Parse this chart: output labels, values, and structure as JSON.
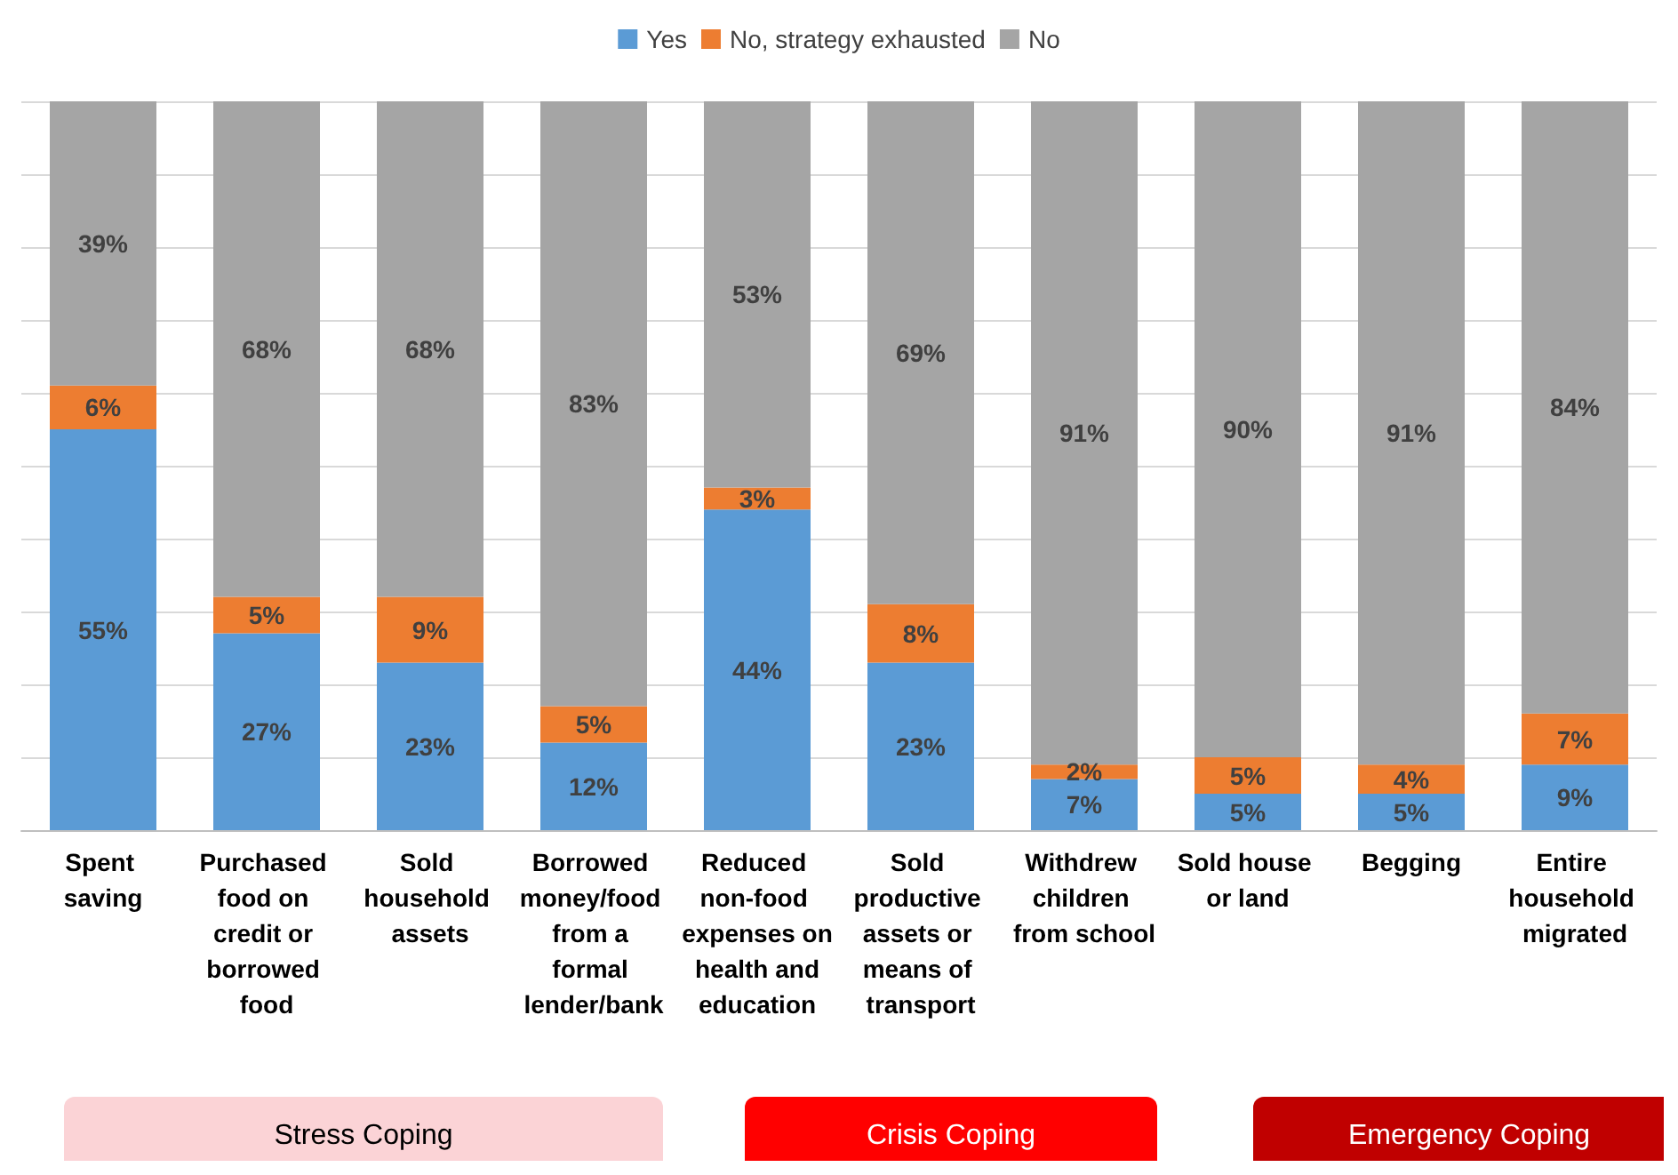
{
  "chart_data": {
    "type": "bar",
    "stacked": true,
    "categories": [
      "Spent saving",
      "Purchased food on credit or borrowed food",
      "Sold household assets",
      "Borrowed money/food from a formal lender/bank",
      "Reduced non-food expenses on health and education",
      "Sold productive assets or means of transport",
      "Withdrew children from school",
      "Sold house or land",
      "Begging",
      "Entire household migrated"
    ],
    "series": [
      {
        "name": "Yes",
        "color": "#5b9bd5",
        "values": [
          55,
          27,
          23,
          12,
          44,
          23,
          7,
          5,
          5,
          9
        ],
        "value_labels": [
          "55%",
          "27%",
          "23%",
          "12%",
          "44%",
          "23%",
          "7%",
          "5%",
          "5%",
          "9%"
        ]
      },
      {
        "name": "No, strategy exhausted",
        "color": "#ed7d31",
        "values": [
          6,
          5,
          9,
          5,
          3,
          8,
          2,
          5,
          4,
          7
        ],
        "value_labels": [
          "6%",
          "5%",
          "9%",
          "5%",
          "3%",
          "8%",
          "2%",
          "5%",
          "4%",
          "7%"
        ]
      },
      {
        "name": "No",
        "color": "#a5a5a5",
        "values": [
          39,
          68,
          68,
          83,
          53,
          69,
          91,
          90,
          91,
          84
        ],
        "value_labels": [
          "39%",
          "68%",
          "68%",
          "83%",
          "53%",
          "69%",
          "91%",
          "90%",
          "91%",
          "84%"
        ]
      }
    ],
    "ylim": [
      0,
      100
    ],
    "yticks": [
      {
        "value": 0,
        "label": null
      },
      {
        "value": 10,
        "label": null
      },
      {
        "value": 20,
        "label": null
      },
      {
        "value": 30,
        "label": null
      },
      {
        "value": 40,
        "label": null
      },
      {
        "value": 50,
        "label": null
      },
      {
        "value": 60,
        "label": null
      },
      {
        "value": 70,
        "label": null
      },
      {
        "value": 80,
        "label": null
      },
      {
        "value": 90,
        "label": null
      },
      {
        "value": 100,
        "label": null
      }
    ],
    "tick_labels": "x",
    "grid": "y",
    "legend": "top",
    "annotations": [
      "Stress Coping",
      "Crisis Coping",
      "Emergency Coping"
    ]
  }
}
